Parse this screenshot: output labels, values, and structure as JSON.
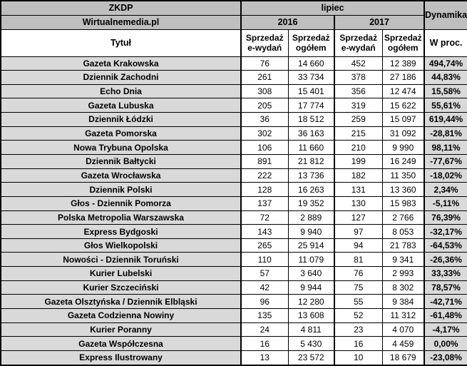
{
  "header": {
    "org": "ZKDP",
    "source": "Wirtualnemedia.pl",
    "month": "lipiec",
    "year_2016": "2016",
    "year_2017": "2017",
    "dynamics": "Dynamika",
    "title_col": "Tytuł",
    "col_esales": "Sprzedaż\ne-wydań",
    "col_total": "Sprzedaż\nogółem",
    "col_percent": "W proc."
  },
  "colors": {
    "header_bg": "#bfbfbf",
    "shaded_cell_bg": "#d9d9d9",
    "numeric_cell_bg": "#ffffff",
    "border": "#000000",
    "text": "#000000"
  },
  "chart_data": {
    "type": "table",
    "title": "ZKDP / Wirtualnemedia.pl — lipiec 2016 vs 2017",
    "columns": [
      "Tytuł",
      "Sprzedaż e-wydań 2016",
      "Sprzedaż ogółem 2016",
      "Sprzedaż e-wydań 2017",
      "Sprzedaż ogółem 2017",
      "Dynamika w proc."
    ],
    "rows": [
      {
        "title": "Gazeta Krakowska",
        "e2016": "76",
        "t2016": "14 660",
        "e2017": "452",
        "t2017": "12 389",
        "pct": "494,74%"
      },
      {
        "title": "Dziennik Zachodni",
        "e2016": "261",
        "t2016": "33 734",
        "e2017": "378",
        "t2017": "27 186",
        "pct": "44,83%"
      },
      {
        "title": "Echo Dnia",
        "e2016": "308",
        "t2016": "15 401",
        "e2017": "356",
        "t2017": "12 474",
        "pct": "15,58%"
      },
      {
        "title": "Gazeta Lubuska",
        "e2016": "205",
        "t2016": "17 774",
        "e2017": "319",
        "t2017": "15 622",
        "pct": "55,61%"
      },
      {
        "title": "Dziennik Łódzki",
        "e2016": "36",
        "t2016": "18 512",
        "e2017": "259",
        "t2017": "15 097",
        "pct": "619,44%"
      },
      {
        "title": "Gazeta Pomorska",
        "e2016": "302",
        "t2016": "36 163",
        "e2017": "215",
        "t2017": "31 092",
        "pct": "-28,81%"
      },
      {
        "title": "Nowa Trybuna Opolska",
        "e2016": "106",
        "t2016": "11 660",
        "e2017": "210",
        "t2017": "9 990",
        "pct": "98,11%"
      },
      {
        "title": "Dziennik Bałtycki",
        "e2016": "891",
        "t2016": "21 812",
        "e2017": "199",
        "t2017": "16 249",
        "pct": "-77,67%"
      },
      {
        "title": "Gazeta Wrocławska",
        "e2016": "222",
        "t2016": "13 736",
        "e2017": "182",
        "t2017": "11 350",
        "pct": "-18,02%"
      },
      {
        "title": "Dziennik Polski",
        "e2016": "128",
        "t2016": "16 263",
        "e2017": "131",
        "t2017": "13 360",
        "pct": "2,34%"
      },
      {
        "title": "Głos - Dziennik Pomorza",
        "e2016": "137",
        "t2016": "19 352",
        "e2017": "130",
        "t2017": "15 983",
        "pct": "-5,11%"
      },
      {
        "title": "Polska Metropolia Warszawska",
        "e2016": "72",
        "t2016": "2 889",
        "e2017": "127",
        "t2017": "2 766",
        "pct": "76,39%"
      },
      {
        "title": "Express Bydgoski",
        "e2016": "143",
        "t2016": "9 940",
        "e2017": "97",
        "t2017": "8 053",
        "pct": "-32,17%"
      },
      {
        "title": "Głos Wielkopolski",
        "e2016": "265",
        "t2016": "25 914",
        "e2017": "94",
        "t2017": "21 783",
        "pct": "-64,53%"
      },
      {
        "title": "Nowości - Dziennik Toruński",
        "e2016": "110",
        "t2016": "11 079",
        "e2017": "81",
        "t2017": "9 341",
        "pct": "-26,36%"
      },
      {
        "title": "Kurier Lubelski",
        "e2016": "57",
        "t2016": "3 640",
        "e2017": "76",
        "t2017": "2 993",
        "pct": "33,33%"
      },
      {
        "title": "Kurier Szczeciński",
        "e2016": "42",
        "t2016": "9 944",
        "e2017": "75",
        "t2017": "8 302",
        "pct": "78,57%"
      },
      {
        "title": "Gazeta Olsztyńska / Dziennik Elbląski",
        "e2016": "96",
        "t2016": "12 280",
        "e2017": "55",
        "t2017": "9 384",
        "pct": "-42,71%"
      },
      {
        "title": "Gazeta Codzienna Nowiny",
        "e2016": "135",
        "t2016": "13 608",
        "e2017": "52",
        "t2017": "11 312",
        "pct": "-61,48%"
      },
      {
        "title": "Kurier Poranny",
        "e2016": "24",
        "t2016": "4 811",
        "e2017": "23",
        "t2017": "4 070",
        "pct": "-4,17%"
      },
      {
        "title": "Gazeta Współczesna",
        "e2016": "16",
        "t2016": "5 430",
        "e2017": "16",
        "t2017": "4 459",
        "pct": "0,00%"
      },
      {
        "title": "Express Ilustrowany",
        "e2016": "13",
        "t2016": "23 572",
        "e2017": "10",
        "t2017": "18 679",
        "pct": "-23,08%"
      }
    ]
  }
}
